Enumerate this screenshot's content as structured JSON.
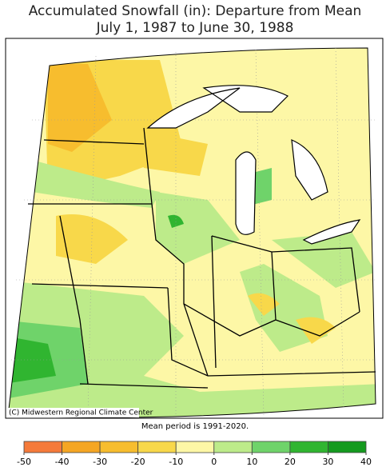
{
  "title_lines": [
    "Accumulated Snowfall (in): Departure from Mean",
    "July 1, 1987 to June 30, 1988"
  ],
  "credit": "(C) Midwestern Regional Climate Center",
  "note": "Mean period is 1991-2020.",
  "legend": {
    "colors": [
      "#f57a3a",
      "#f5a623",
      "#f7bd2e",
      "#f8d84a",
      "#fdf7a6",
      "#bdeb8a",
      "#6fd36a",
      "#30b530",
      "#149a1e"
    ],
    "ticks": [
      -50,
      -40,
      -30,
      -20,
      -10,
      0,
      10,
      20,
      30,
      40
    ]
  }
}
